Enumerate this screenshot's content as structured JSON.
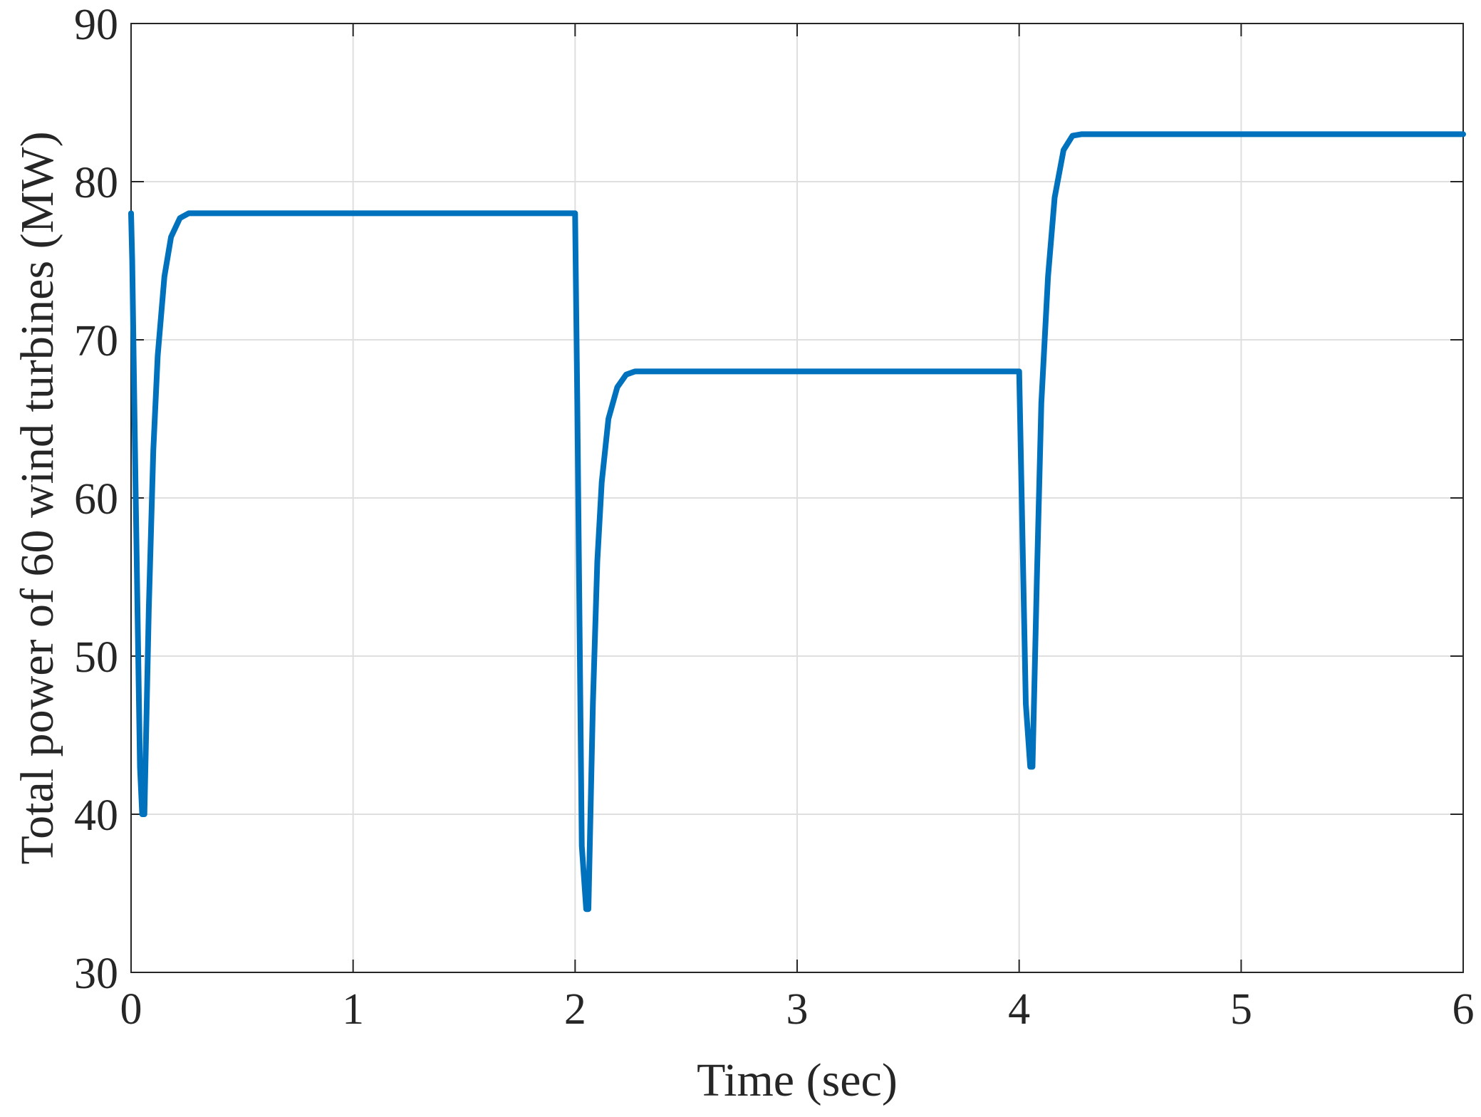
{
  "chart_data": {
    "type": "line",
    "title": "",
    "xlabel": "Time (sec)",
    "ylabel": "Total power of 60 wind turbines (MW)",
    "xlim": [
      0,
      6
    ],
    "ylim": [
      30,
      90
    ],
    "x_ticks": [
      0,
      1,
      2,
      3,
      4,
      5,
      6
    ],
    "y_ticks": [
      30,
      40,
      50,
      60,
      70,
      80,
      90
    ],
    "grid": true,
    "legend": "none",
    "line_color": "#0072BD",
    "series": [
      {
        "x": [
          0,
          0.005,
          0.02,
          0.04,
          0.05,
          0.06,
          0.08,
          0.1,
          0.12,
          0.15,
          0.18,
          0.22,
          0.26,
          0.3,
          1.0,
          1.99,
          2.0,
          2.01,
          2.03,
          2.05,
          2.06,
          2.08,
          2.1,
          2.12,
          2.15,
          2.19,
          2.23,
          2.27,
          2.3,
          3.0,
          3.99,
          4.0,
          4.01,
          4.03,
          4.05,
          4.06,
          4.08,
          4.1,
          4.13,
          4.16,
          4.2,
          4.24,
          4.28,
          4.3,
          5.0,
          6.0
        ],
        "y": [
          78,
          75,
          61,
          43,
          40,
          40,
          53,
          63,
          69,
          74,
          76.5,
          77.7,
          78,
          78,
          78,
          78,
          78,
          66,
          38,
          34,
          34,
          47,
          56,
          61,
          65,
          67,
          67.8,
          68,
          68,
          68,
          68,
          68,
          61,
          47,
          43,
          43,
          55,
          66,
          74,
          79,
          82,
          82.9,
          83,
          83,
          83,
          83
        ]
      }
    ]
  }
}
